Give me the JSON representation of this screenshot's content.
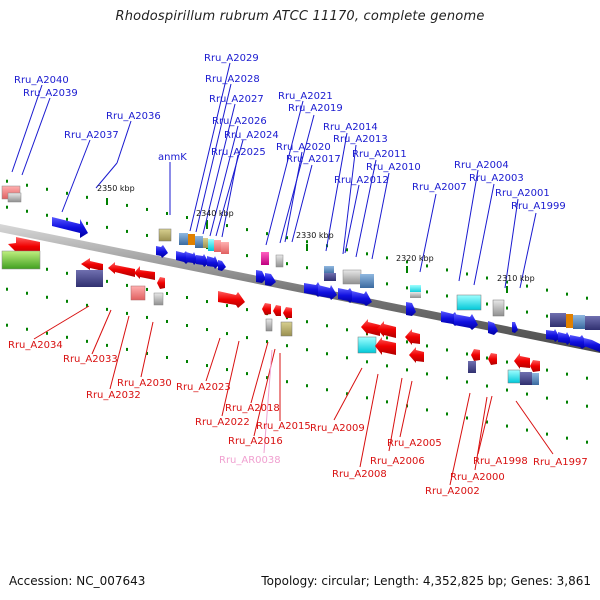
{
  "title": "Rhodospirillum rubrum ATCC 11170, complete genome",
  "footer": {
    "accession": "Accession: NC_007643",
    "summary": "Topology: circular; Length: 4,352,825 bp; Genes: 3,861"
  },
  "colors": {
    "label_top": "#1a1ad0",
    "label_bottom": "#d81010",
    "label_rna": "#f0a0d0",
    "fwd_arrow": "#1010e0",
    "rev_arrow": "#f00000",
    "axis": "#777777",
    "tick_mark": "#008000"
  },
  "scale_ticks": [
    "2350 kbp",
    "2340 kbp",
    "2330 kbp",
    "2320 kbp",
    "2310 kbp"
  ],
  "labels_top": [
    "Rru_A2040",
    "Rru_A2039",
    "Rru_A2037",
    "Rru_A2036",
    "anmK",
    "Rru_A2029",
    "Rru_A2028",
    "Rru_A2027",
    "Rru_A2026",
    "Rru_A2024",
    "Rru_A2025",
    "Rru_A2021",
    "Rru_A2019",
    "Rru_A2020",
    "Rru_A2017",
    "Rru_A2014",
    "Rru_A2013",
    "Rru_A2011",
    "Rru_A2012",
    "Rru_A2010",
    "Rru_A2007",
    "Rru_A2004",
    "Rru_A2003",
    "Rru_A2001",
    "Rru_A1999"
  ],
  "labels_bottom": [
    "Rru_A2034",
    "Rru_A2033",
    "Rru_A2030",
    "Rru_A2032",
    "Rru_A2023",
    "Rru_A2018",
    "Rru_A2022",
    "Rru_A2015",
    "Rru_A2016",
    "Rru_AR0038",
    "Rru_A2009",
    "Rru_A2005",
    "Rru_A2006",
    "Rru_A2008",
    "Rru_A1998",
    "Rru_A1997",
    "Rru_A2000",
    "Rru_A2002"
  ]
}
